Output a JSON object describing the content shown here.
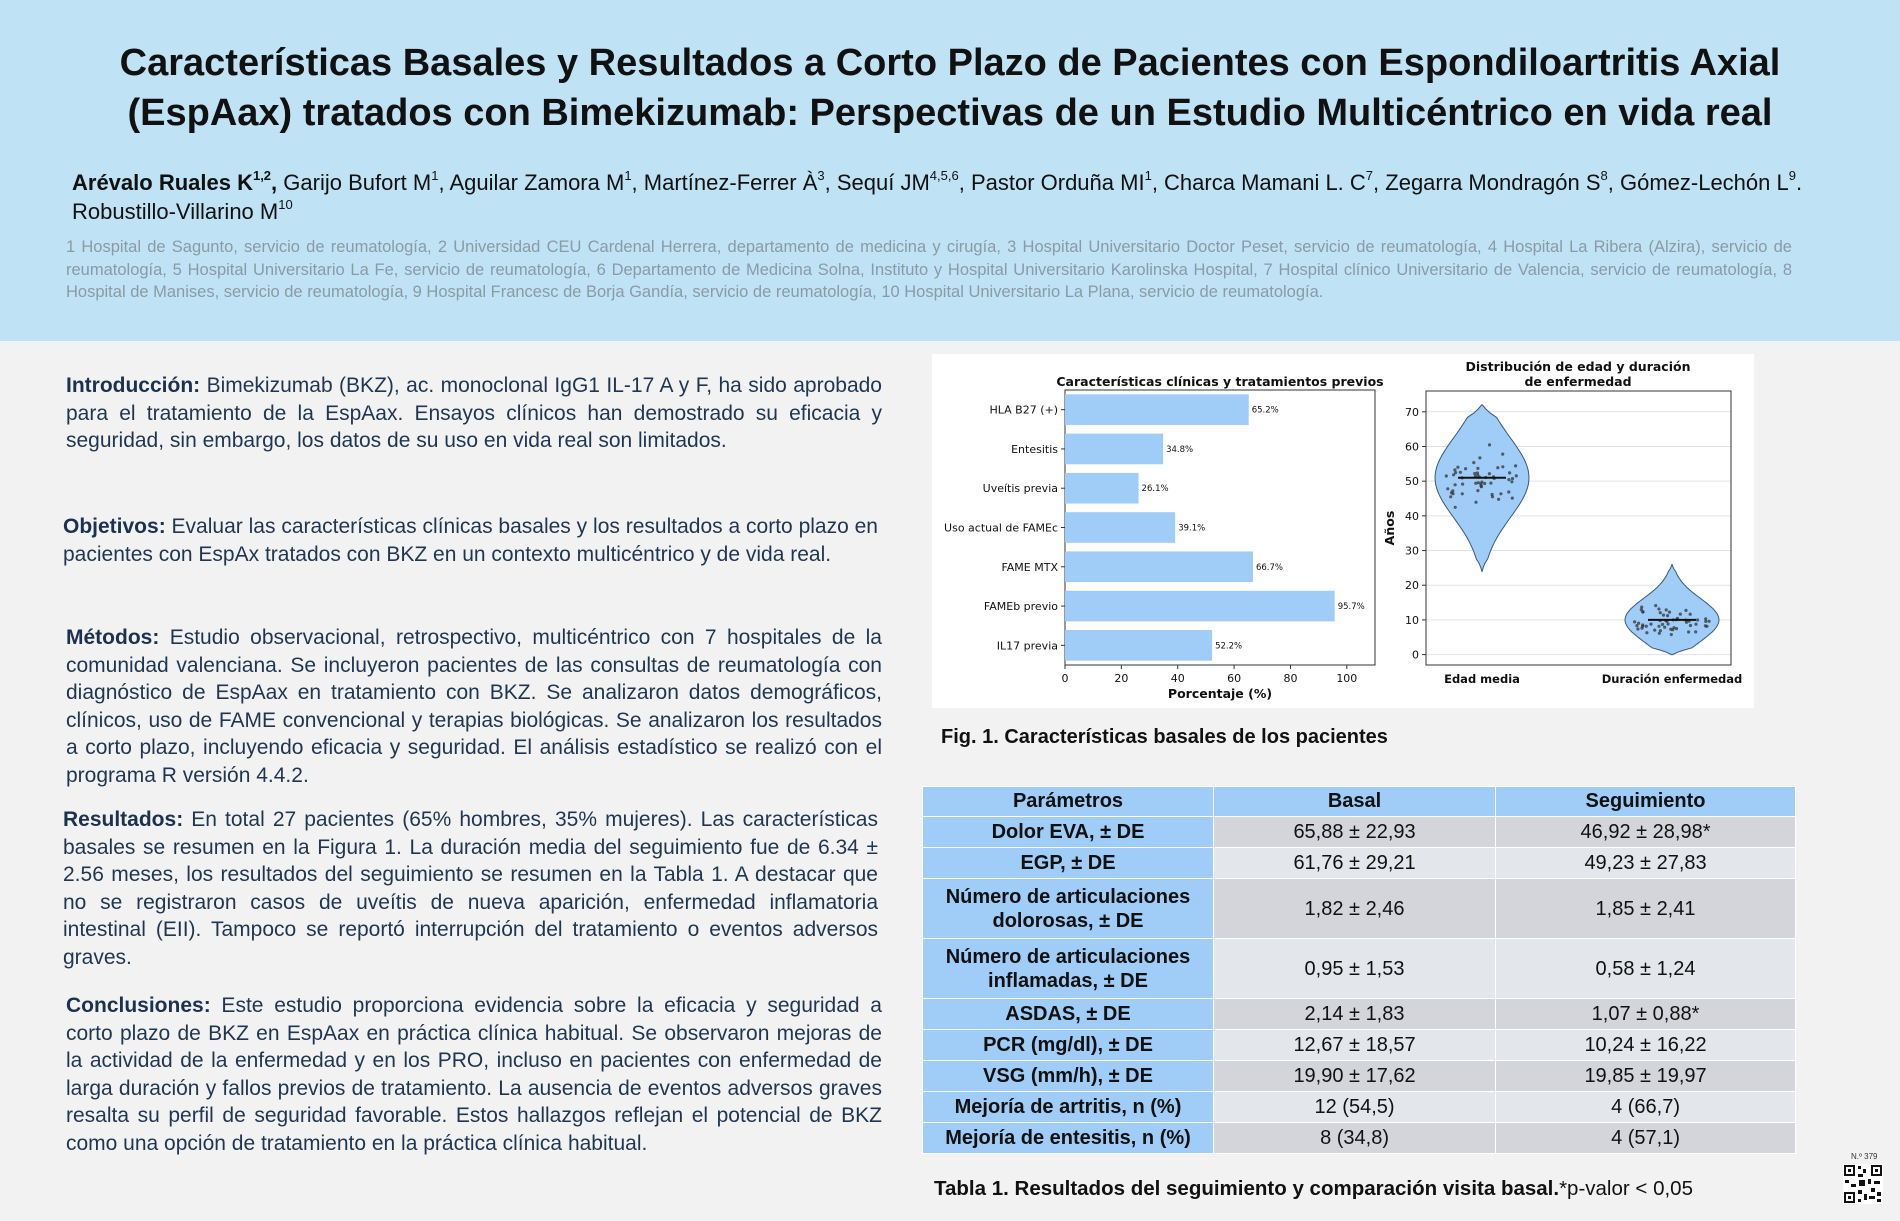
{
  "header": {
    "title_line1": "Características Basales y Resultados a Corto Plazo de Pacientes con Espondiloartritis Axial",
    "title_line2": "(EspAax) tratados con Bimekizumab: Perspectivas de un Estudio Multicéntrico en vida real",
    "authors": [
      {
        "name": "Arévalo Ruales K",
        "sup": "1,2",
        "bold": true
      },
      {
        "name": "Garijo Bufort M",
        "sup": "1"
      },
      {
        "name": "Aguilar Zamora M",
        "sup": "1"
      },
      {
        "name": "Martínez-Ferrer À",
        "sup": "3"
      },
      {
        "name": "Sequí JM",
        "sup": "4,5,6"
      },
      {
        "name": "Pastor Orduña MI",
        "sup": "1"
      },
      {
        "name": "Charca Mamani L. C",
        "sup": "7"
      },
      {
        "name": "Zegarra Mondragón S",
        "sup": "8"
      },
      {
        "name": "Gómez-Lechón L",
        "sup": "9"
      },
      {
        "name": "Robustillo-Villarino M",
        "sup": "10"
      }
    ],
    "affiliations": "1 Hospital de Sagunto, servicio de reumatología, 2 Universidad CEU Cardenal Herrera, departamento de medicina y cirugía, 3 Hospital Universitario Doctor Peset, servicio de reumatología, 4 Hospital La Ribera (Alzira), servicio de reumatología, 5 Hospital Universitario La Fe, servicio de reumatología, 6 Departamento de Medicina Solna, Instituto y Hospital Universitario Karolinska  Hospital, 7 Hospital clínico Universitario de Valencia, servicio de reumatología, 8 Hospital de Manises, servicio de reumatología, 9 Hospital Francesc de Borja Gandía, servicio de reumatología, 10 Hospital Universitario La Plana, servicio de reumatología."
  },
  "sections": {
    "intro": {
      "heading": "Introducción:",
      "text": " Bimekizumab (BKZ), ac. monoclonal IgG1 IL-17 A y F, ha sido aprobado para el tratamiento de la EspAax. Ensayos clínicos han demostrado su eficacia y seguridad, sin embargo, los datos de su uso en vida real son limitados."
    },
    "objectives": {
      "heading": "Objetivos:",
      "text": " Evaluar las características clínicas basales y los resultados a corto plazo en pacientes con EspAx tratados con BKZ en un contexto multicéntrico y de vida real."
    },
    "methods": {
      "heading": "Métodos:",
      "text": " Estudio observacional, retrospectivo, multicéntrico con 7 hospitales de la comunidad valenciana. Se incluyeron pacientes de las consultas de reumatología con diagnóstico de EspAax en tratamiento con BKZ. Se analizaron datos demográficos, clínicos, uso de FAME convencional y terapias biológicas. Se analizaron los resultados a corto plazo, incluyendo eficacia y seguridad. El análisis estadístico se realizó con el programa R versión 4.4.2."
    },
    "results": {
      "heading": "Resultados:",
      "text": " En total 27 pacientes (65% hombres, 35% mujeres). Las características basales se resumen en la Figura 1. La duración media del seguimiento fue de 6.34 ± 2.56 meses, los resultados del seguimiento se resumen en la Tabla 1. A destacar que no se registraron casos de uveítis de nueva aparición, enfermedad inflamatoria intestinal (EII). Tampoco se reportó interrupción del tratamiento o eventos adversos graves."
    },
    "conclusions": {
      "heading": "Conclusiones:",
      "text": " Este estudio proporciona evidencia sobre la eficacia y seguridad a corto plazo de BKZ en EspAax en práctica clínica habitual. Se observaron mejoras de la actividad de la enfermedad y en los PRO, incluso en pacientes con enfermedad de larga duración y fallos previos de tratamiento. La ausencia de eventos adversos graves resalta su perfil de seguridad favorable. Estos hallazgos reflejan el potencial de BKZ como una opción de tratamiento en la práctica clínica habitual."
    }
  },
  "chart_data": [
    {
      "type": "bar",
      "orientation": "horizontal",
      "title": "Características clínicas y tratamientos previos",
      "xlabel": "Porcentaje (%)",
      "categories": [
        "HLA B27 (+)",
        "Entesitis",
        "Uveítis previa",
        "Uso actual de FAMEc",
        "FAME MTX",
        "FAMEb previo",
        "IL17 previa"
      ],
      "values": [
        65.2,
        34.8,
        26.1,
        39.1,
        66.7,
        95.7,
        52.2
      ],
      "value_labels": [
        "65.2%",
        "34.8%",
        "26.1%",
        "39.1%",
        "66.7%",
        "95.7%",
        "52.2%"
      ],
      "xlim": [
        0,
        110
      ],
      "xticks": [
        0,
        20,
        40,
        60,
        80,
        100
      ],
      "bar_color": "#9fcdf7"
    },
    {
      "type": "violin",
      "title_line1": "Distribución de edad y duración",
      "title_line2": "de enfermedad",
      "ylabel": "Años",
      "categories": [
        "Edad media",
        "Duración enfermedad"
      ],
      "medians": [
        51,
        10
      ],
      "ranges": [
        [
          24,
          72
        ],
        [
          0,
          26
        ]
      ],
      "ylim": [
        -3,
        76
      ],
      "yticks": [
        0,
        10,
        20,
        30,
        40,
        50,
        60,
        70
      ],
      "grid": true,
      "fill_color": "#9fcdf7"
    }
  ],
  "figure": {
    "caption": "Fig. 1. Características basales de los pacientes"
  },
  "table": {
    "headers": [
      "Parámetros",
      "Basal",
      "Seguimiento"
    ],
    "rows": [
      {
        "param": "Dolor EVA, ± DE",
        "basal": "65,88 ± 22,93",
        "follow": "46,92 ± 28,98*"
      },
      {
        "param": "EGP, ± DE",
        "basal": "61,76 ± 29,21",
        "follow": "49,23 ± 27,83"
      },
      {
        "param": "Número de articulaciones dolorosas, ± DE",
        "basal": "1,82 ± 2,46",
        "follow": "1,85 ± 2,41"
      },
      {
        "param": "Número de articulaciones inflamadas, ± DE",
        "basal": "0,95 ± 1,53",
        "follow": "0,58 ± 1,24"
      },
      {
        "param": "ASDAS, ± DE",
        "basal": "2,14 ± 1,83",
        "follow": "1,07 ± 0,88*"
      },
      {
        "param": "PCR (mg/dl), ± DE",
        "basal": "12,67 ± 18,57",
        "follow": "10,24 ± 16,22"
      },
      {
        "param": "VSG (mm/h), ± DE",
        "basal": "19,90 ± 17,62",
        "follow": "19,85 ± 19,97"
      },
      {
        "param": "Mejoría de artritis, n (%)",
        "basal": "12 (54,5)",
        "follow": "4 (66,7)"
      },
      {
        "param": "Mejoría de entesitis, n (%)",
        "basal": "8 (34,8)",
        "follow": "4 (57,1)"
      }
    ],
    "caption_bold": "Tabla 1. Resultados del seguimiento y comparación visita basal.",
    "caption_note": "*p-valor < 0,05"
  },
  "footer": {
    "poster_number": "N.º 379"
  }
}
